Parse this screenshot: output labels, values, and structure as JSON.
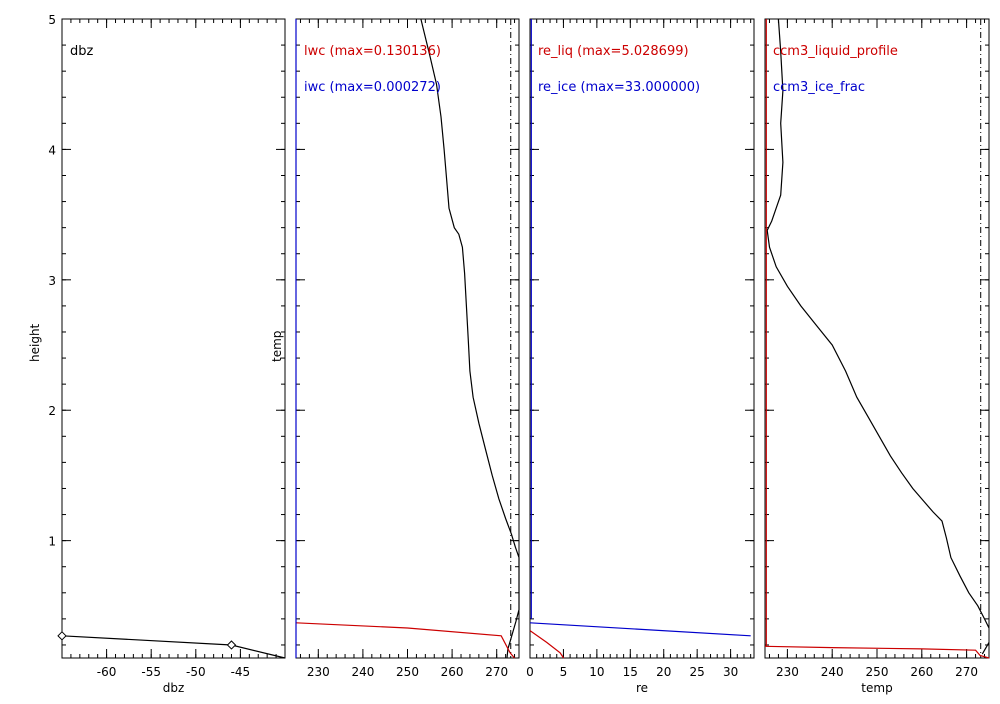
{
  "chart_data": [
    {
      "type": "line",
      "ylabel": "height",
      "xlabel": "dbz",
      "legend": [
        {
          "text": "dbz",
          "color": "#000000"
        }
      ],
      "xlim": [
        -65,
        -40
      ],
      "ylim": [
        0.1,
        5
      ],
      "xticks": [
        -60,
        -55,
        -50,
        -45
      ],
      "yticks": [
        1,
        2,
        3,
        4,
        5
      ],
      "series": [
        {
          "color": "#000000",
          "marker": "diamond",
          "x": [
            -65,
            -46,
            -40
          ],
          "y": [
            0.27,
            0.2,
            0.1
          ]
        }
      ]
    },
    {
      "type": "line",
      "ylabel": "temp",
      "xlabel": "",
      "legend": [
        {
          "text": "lwc (max=0.130136)",
          "color": "#cc0000"
        },
        {
          "text": "iwc (max=0.000272)",
          "color": "#0000cc"
        }
      ],
      "xlim": [
        225,
        275
      ],
      "ylim": [
        0.1,
        5
      ],
      "xticks": [
        230,
        240,
        250,
        260,
        270
      ],
      "vlines": [
        {
          "x": 273.15,
          "style": "dashdot"
        }
      ],
      "series": [
        {
          "color": "#000000",
          "x": [
            253,
            253.5,
            255,
            256.5,
            257.5,
            258.2,
            258.7,
            259.3,
            260.5,
            261.5,
            262.3,
            262.8,
            263.2,
            263.6,
            264,
            264.7,
            266,
            267.5,
            269,
            270.5,
            272,
            273.3,
            274.2,
            275,
            275,
            274.3,
            273.2,
            272.5,
            272.3
          ],
          "y": [
            5.0,
            4.93,
            4.72,
            4.5,
            4.25,
            4.0,
            3.8,
            3.55,
            3.4,
            3.35,
            3.25,
            3.05,
            2.8,
            2.55,
            2.3,
            2.1,
            1.9,
            1.7,
            1.5,
            1.32,
            1.17,
            1.05,
            0.95,
            0.87,
            0.47,
            0.38,
            0.25,
            0.17,
            0.1
          ]
        },
        {
          "color": "#cc0000",
          "x": [
            225,
            250,
            271,
            273,
            274
          ],
          "y": [
            0.37,
            0.33,
            0.27,
            0.14,
            0.1
          ]
        },
        {
          "color": "#0000cc",
          "x": [
            225,
            225
          ],
          "y": [
            0.1,
            5.0
          ]
        }
      ]
    },
    {
      "type": "line",
      "ylabel": "",
      "xlabel": "re",
      "legend": [
        {
          "text": "re_liq (max=5.028699)",
          "color": "#cc0000"
        },
        {
          "text": "re_ice (max=33.000000)",
          "color": "#0000cc"
        }
      ],
      "xlim": [
        0,
        33.5
      ],
      "ylim": [
        0.1,
        5
      ],
      "xticks": [
        0,
        5,
        10,
        15,
        20,
        25,
        30
      ],
      "series": [
        {
          "color": "#cc0000",
          "x": [
            0,
            2.5,
            4.5,
            5.03
          ],
          "y": [
            0.31,
            0.22,
            0.14,
            0.1
          ]
        },
        {
          "color": "#0000cc",
          "x": [
            0,
            33
          ],
          "y": [
            0.37,
            0.27
          ]
        },
        {
          "color": "#0000cc",
          "x": [
            0.2,
            0.2
          ],
          "y": [
            0.4,
            5.0
          ]
        }
      ]
    },
    {
      "type": "line",
      "ylabel": "",
      "xlabel": "temp",
      "legend": [
        {
          "text": "ccm3_liquid_profile",
          "color": "#cc0000"
        },
        {
          "text": "ccm3_ice_frac",
          "color": "#0000cc"
        }
      ],
      "xlim": [
        225,
        275
      ],
      "ylim": [
        0.1,
        5
      ],
      "xticks": [
        230,
        240,
        250,
        260,
        270
      ],
      "vlines": [
        {
          "x": 273.15,
          "style": "dashdot"
        }
      ],
      "series": [
        {
          "color": "#000000",
          "x": [
            228,
            228.5,
            229,
            228.5,
            229,
            228.5,
            227.5,
            226.5,
            225.5,
            226,
            227.5,
            230,
            233,
            236.5,
            240,
            243,
            245.5,
            248,
            250.5,
            253,
            255.5,
            258,
            260.5,
            262.5,
            264.5,
            265.5,
            266.5,
            268.5,
            270.5,
            272.5,
            274,
            275
          ],
          "y": [
            5.0,
            4.75,
            4.45,
            4.2,
            3.9,
            3.65,
            3.55,
            3.45,
            3.38,
            3.25,
            3.1,
            2.95,
            2.8,
            2.65,
            2.5,
            2.3,
            2.1,
            1.95,
            1.8,
            1.65,
            1.52,
            1.4,
            1.3,
            1.22,
            1.15,
            1.02,
            0.87,
            0.73,
            0.6,
            0.5,
            0.4,
            0.33
          ]
        },
        {
          "color": "#cc0000",
          "x": [
            225,
            240,
            260,
            272,
            273,
            275
          ],
          "y": [
            0.19,
            0.18,
            0.17,
            0.16,
            0.12,
            0.1
          ]
        },
        {
          "color": "#cc0000",
          "x": [
            225.3,
            225.3
          ],
          "y": [
            0.19,
            5.0
          ]
        },
        {
          "color": "#000000",
          "x": [
            273.5,
            275
          ],
          "y": [
            0.13,
            0.22
          ]
        }
      ]
    }
  ]
}
